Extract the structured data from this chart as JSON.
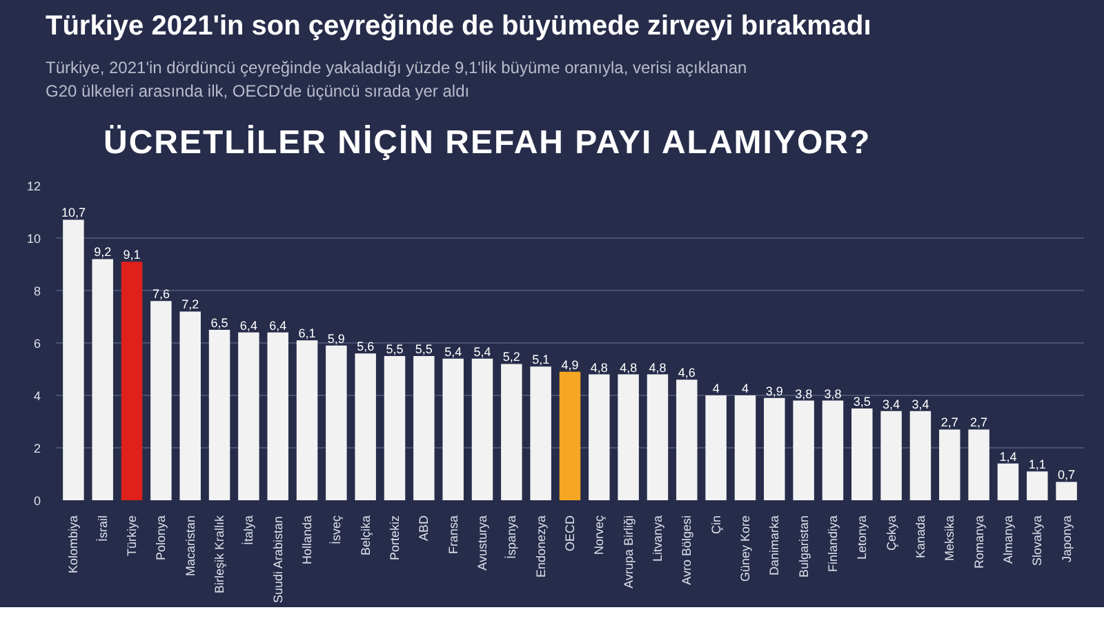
{
  "chart_data": {
    "type": "bar",
    "title": "Türkiye 2021'in son çeyreğinde de büyümede zirveyi bırakmadı",
    "subtitle": "Türkiye, 2021'in dördüncü çeyreğinde yakaladığı yüzde 9,1'lik büyüme oranıyla, verisi açıklanan G20 ülkeleri arasında ilk, OECD'de üçüncü sırada yer aldı",
    "annotations": [
      "ÜCRETLİLER NİÇİN REFAH PAYI ALAMIYOR?"
    ],
    "categories": [
      "Kolombiya",
      "İsrail",
      "Türkiye",
      "Polonya",
      "Macaristan",
      "Birleşik Krallık",
      "İtalya",
      "Suudi Arabistan",
      "Hollanda",
      "İsveç",
      "Belçika",
      "Portekiz",
      "ABD",
      "Fransa",
      "Avusturya",
      "İspanya",
      "Endonezya",
      "OECD",
      "Norveç",
      "Avrupa Birliği",
      "Litvanya",
      "Avro Bölgesi",
      "Çin",
      "Güney Kore",
      "Danimarka",
      "Bulgaristan",
      "Finlandiya",
      "Letonya",
      "Çekya",
      "Kanada",
      "Meksika",
      "Romanya",
      "Almanya",
      "Slovakya",
      "Japonya"
    ],
    "values": [
      10.7,
      9.2,
      9.1,
      7.6,
      7.2,
      6.5,
      6.4,
      6.4,
      6.1,
      5.9,
      5.6,
      5.5,
      5.5,
      5.4,
      5.4,
      5.2,
      5.1,
      4.9,
      4.8,
      4.8,
      4.8,
      4.6,
      4,
      4,
      3.9,
      3.8,
      3.8,
      3.5,
      3.4,
      3.4,
      2.7,
      2.7,
      1.4,
      1.1,
      0.7
    ],
    "value_labels": [
      "10,7",
      "9,2",
      "9,1",
      "7,6",
      "7,2",
      "6,5",
      "6,4",
      "6,4",
      "6,1",
      "5,9",
      "5,6",
      "5,5",
      "5,5",
      "5,4",
      "5,4",
      "5,2",
      "5,1",
      "4,9",
      "4,8",
      "4,8",
      "4,8",
      "4,6",
      "4",
      "4",
      "3,9",
      "3,8",
      "3,8",
      "3,5",
      "3,4",
      "3,4",
      "2,7",
      "2,7",
      "1,4",
      "1,1",
      "0,7"
    ],
    "colors": [
      "#f2f2f2",
      "#f2f2f2",
      "#e0201b",
      "#f2f2f2",
      "#f2f2f2",
      "#f2f2f2",
      "#f2f2f2",
      "#f2f2f2",
      "#f2f2f2",
      "#f2f2f2",
      "#f2f2f2",
      "#f2f2f2",
      "#f2f2f2",
      "#f2f2f2",
      "#f2f2f2",
      "#f2f2f2",
      "#f2f2f2",
      "#f5a623",
      "#f2f2f2",
      "#f2f2f2",
      "#f2f2f2",
      "#f2f2f2",
      "#f2f2f2",
      "#f2f2f2",
      "#f2f2f2",
      "#f2f2f2",
      "#f2f2f2",
      "#f2f2f2",
      "#f2f2f2",
      "#f2f2f2",
      "#f2f2f2",
      "#f2f2f2",
      "#f2f2f2",
      "#f2f2f2",
      "#f2f2f2"
    ],
    "ylim": [
      0,
      12
    ],
    "yticks": [
      0,
      2,
      4,
      6,
      8,
      10,
      12
    ],
    "grid": "y"
  }
}
